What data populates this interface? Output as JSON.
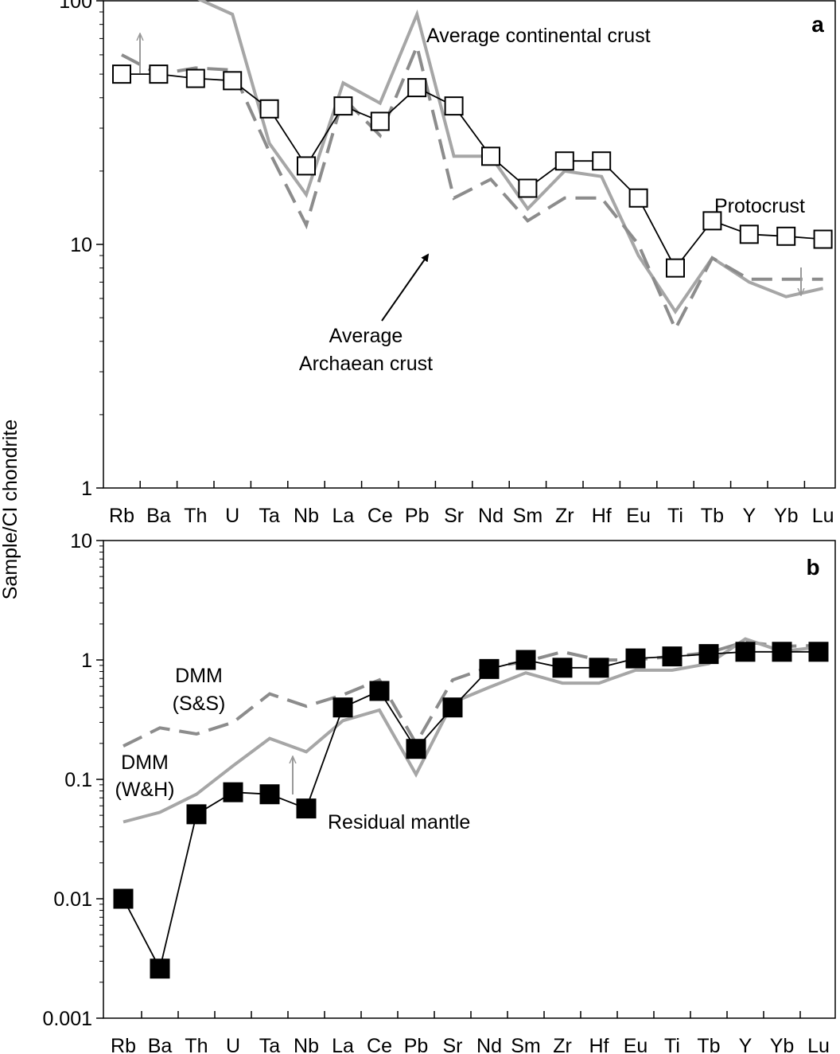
{
  "ylabel": "Sample/CI chondrite",
  "colors": {
    "sample_line": "#000000",
    "gray_solid": "#a6a6a6",
    "gray_dash": "#8c8c8c",
    "arrow_gray": "#999999"
  },
  "chart_data": [
    {
      "type": "line",
      "panel": "a",
      "panel_label": "a",
      "yscale": "log",
      "ylim": [
        1,
        100
      ],
      "yticks": [
        "1",
        "10",
        "100"
      ],
      "categories": [
        "Rb",
        "Ba",
        "Th",
        "U",
        "Ta",
        "Nb",
        "La",
        "Ce",
        "Pb",
        "Sr",
        "Nd",
        "Sm",
        "Zr",
        "Hf",
        "Eu",
        "Ti",
        "Tb",
        "Y",
        "Yb",
        "Lu"
      ],
      "series": [
        {
          "name": "Protocrust",
          "style": "open-square",
          "values": [
            50,
            50,
            48,
            47,
            36,
            21,
            37,
            32,
            44,
            37,
            23,
            17,
            22,
            22,
            15.5,
            8,
            12.5,
            11,
            10.8,
            10.5
          ]
        },
        {
          "name": "Average continental crust",
          "style": "gray-solid",
          "values": [
            105,
            104,
            103,
            88,
            26,
            16,
            46,
            38,
            88,
            23,
            23,
            14,
            20,
            19,
            9,
            5.3,
            8.8,
            7,
            6.1,
            6.6
          ]
        },
        {
          "name": "Average Archaean crust",
          "style": "gray-dashed",
          "values": [
            60,
            50,
            53,
            52,
            24,
            12,
            40,
            28,
            65,
            15.5,
            18.5,
            12.5,
            15.5,
            15.5,
            10,
            4.5,
            8.8,
            7.2,
            7.2,
            7.2
          ]
        }
      ],
      "annotations": [
        {
          "text": "Average continental crust"
        },
        {
          "text": "Protocrust"
        },
        {
          "text": "Average"
        },
        {
          "text": "Archaean crust"
        }
      ],
      "grid": false
    },
    {
      "type": "line",
      "panel": "b",
      "panel_label": "b",
      "yscale": "log",
      "ylim": [
        0.001,
        10
      ],
      "yticks": [
        "0.001",
        "0.01",
        "0.1",
        "1",
        "10"
      ],
      "categories": [
        "Rb",
        "Ba",
        "Th",
        "U",
        "Ta",
        "Nb",
        "La",
        "Ce",
        "Pb",
        "Sr",
        "Nd",
        "Sm",
        "Zr",
        "Hf",
        "Eu",
        "Ti",
        "Tb",
        "Y",
        "Yb",
        "Lu"
      ],
      "series": [
        {
          "name": "Residual mantle",
          "style": "filled-square",
          "values": [
            0.01,
            0.0026,
            0.051,
            0.078,
            0.075,
            0.057,
            0.4,
            0.55,
            0.18,
            0.4,
            0.84,
            1.0,
            0.86,
            0.86,
            1.03,
            1.07,
            1.12,
            1.17,
            1.17,
            1.17
          ]
        },
        {
          "name": "DMM (S&S)",
          "style": "gray-dashed",
          "values": [
            0.19,
            0.27,
            0.24,
            0.3,
            0.52,
            0.41,
            0.51,
            0.68,
            0.2,
            0.68,
            0.87,
            0.97,
            1.17,
            1.0,
            1.0,
            1.07,
            1.15,
            1.42,
            1.3,
            1.32
          ]
        },
        {
          "name": "DMM (W&H)",
          "style": "gray-solid",
          "values": [
            0.044,
            0.053,
            0.075,
            0.13,
            0.22,
            0.17,
            0.31,
            0.38,
            0.11,
            0.44,
            0.59,
            0.78,
            0.64,
            0.64,
            0.82,
            0.82,
            0.93,
            1.5,
            1.18,
            1.28
          ]
        }
      ],
      "annotations": [
        {
          "text": "DMM"
        },
        {
          "text": "(S&S)"
        },
        {
          "text": "DMM"
        },
        {
          "text": "(W&H)"
        },
        {
          "text": "Residual mantle"
        }
      ],
      "grid": false
    }
  ]
}
